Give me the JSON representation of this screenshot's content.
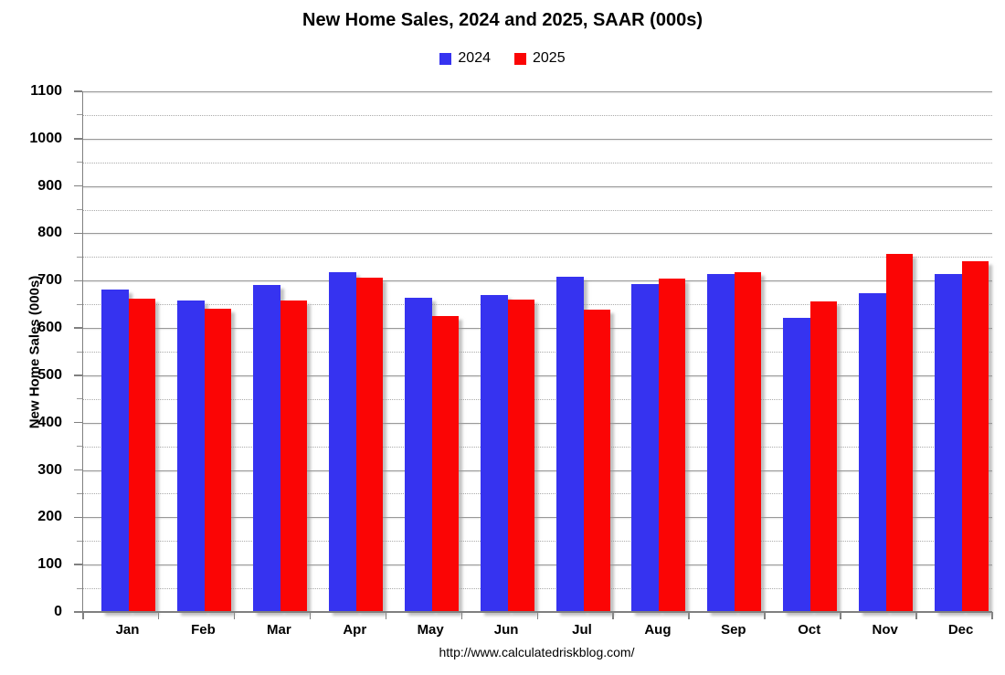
{
  "title": "New Home Sales,  2024 and 2025, SAAR (000s)",
  "footer_url": "http://www.calculatedriskblog.com/",
  "colors": {
    "series_2024": "#3633F0",
    "series_2025": "#FB0505",
    "gridline_major": "#999999",
    "axis": "#808080"
  },
  "chart_data": {
    "type": "bar",
    "title": "New Home Sales,  2024 and 2025, SAAR (000s)",
    "categories": [
      "Jan",
      "Feb",
      "Mar",
      "Apr",
      "May",
      "Jun",
      "Jul",
      "Aug",
      "Sep",
      "Oct",
      "Nov",
      "Dec"
    ],
    "series": [
      {
        "name": "2024",
        "color": "#3633F0",
        "values": [
          681,
          658,
          690,
          718,
          663,
          670,
          709,
          692,
          715,
          621,
          673,
          715
        ]
      },
      {
        "name": "2025",
        "color": "#FB0505",
        "values": [
          661,
          640,
          659,
          706,
          625,
          660,
          638,
          705,
          717,
          656,
          757,
          741
        ]
      }
    ],
    "xlabel": "",
    "ylabel": "New Home Sales (000s)",
    "ylim": [
      0,
      1100
    ],
    "yticks": [
      0,
      100,
      200,
      300,
      400,
      500,
      600,
      700,
      800,
      900,
      1000,
      1100
    ],
    "minor_tick_interval": 50,
    "grid": true,
    "legend_position": "top-center"
  }
}
